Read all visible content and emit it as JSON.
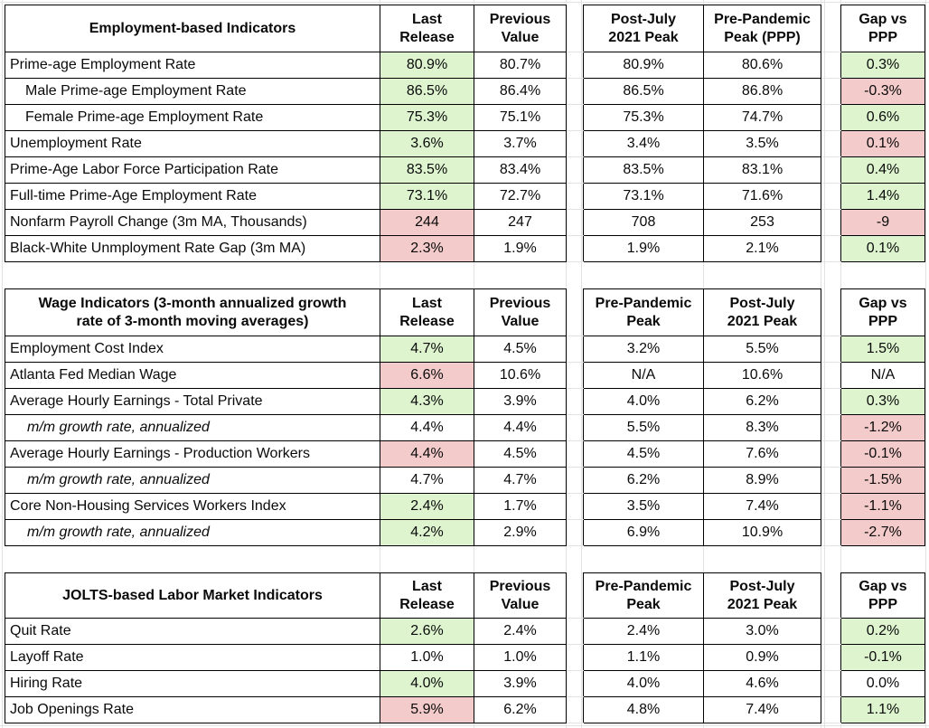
{
  "colors": {
    "positive_fill": "#ddf4cf",
    "negative_fill": "#f4cbcb",
    "cell_border": "#000000",
    "gridline": "#e2e2e2",
    "text": "#0a0a0a"
  },
  "chart_data": [
    {
      "type": "table",
      "title": "Employment-based Indicators",
      "columns": [
        "Last\nRelease",
        "Previous\nValue",
        "Post-July\n2021 Peak",
        "Pre-Pandemic\nPeak (PPP)",
        "Gap vs\nPPP"
      ],
      "rows": [
        {
          "label": "Prime-age Employment Rate",
          "indent": 0,
          "italic": false,
          "values": [
            "80.9%",
            "80.7%",
            "80.9%",
            "80.6%",
            "0.3%"
          ],
          "fills": [
            "green",
            null,
            null,
            null,
            "green"
          ]
        },
        {
          "label": "Male Prime-age Employment Rate",
          "indent": 1,
          "italic": false,
          "values": [
            "86.5%",
            "86.4%",
            "86.5%",
            "86.8%",
            "-0.3%"
          ],
          "fills": [
            "green",
            null,
            null,
            null,
            "red"
          ]
        },
        {
          "label": "Female Prime-age Employment Rate",
          "indent": 1,
          "italic": false,
          "values": [
            "75.3%",
            "75.1%",
            "75.3%",
            "74.7%",
            "0.6%"
          ],
          "fills": [
            "green",
            null,
            null,
            null,
            "green"
          ]
        },
        {
          "label": "Unemployment Rate",
          "indent": 0,
          "italic": false,
          "values": [
            "3.6%",
            "3.7%",
            "3.4%",
            "3.5%",
            "0.1%"
          ],
          "fills": [
            "green",
            null,
            null,
            null,
            "red"
          ]
        },
        {
          "label": "Prime-Age Labor Force Participation Rate",
          "indent": 0,
          "italic": false,
          "values": [
            "83.5%",
            "83.4%",
            "83.5%",
            "83.1%",
            "0.4%"
          ],
          "fills": [
            "green",
            null,
            null,
            null,
            "green"
          ]
        },
        {
          "label": "Full-time Prime-Age Employment Rate",
          "indent": 0,
          "italic": false,
          "values": [
            "73.1%",
            "72.7%",
            "73.1%",
            "71.6%",
            "1.4%"
          ],
          "fills": [
            "green",
            null,
            null,
            null,
            "green"
          ]
        },
        {
          "label": "Nonfarm Payroll Change (3m MA, Thousands)",
          "indent": 0,
          "italic": false,
          "values": [
            "244",
            "247",
            "708",
            "253",
            "-9"
          ],
          "fills": [
            "red",
            null,
            null,
            null,
            "red"
          ]
        },
        {
          "label": "Black-White Unmployment Rate Gap (3m MA)",
          "indent": 0,
          "italic": false,
          "values": [
            "2.3%",
            "1.9%",
            "1.9%",
            "2.1%",
            "0.1%"
          ],
          "fills": [
            "red",
            null,
            null,
            null,
            "green"
          ]
        }
      ]
    },
    {
      "type": "table",
      "title": "Wage Indicators (3-month annualized growth\nrate of 3-month moving averages)",
      "columns": [
        "Last\nRelease",
        "Previous\nValue",
        "Pre-Pandemic\nPeak",
        "Post-July\n2021 Peak",
        "Gap vs\nPPP"
      ],
      "rows": [
        {
          "label": "Employment Cost Index",
          "indent": 0,
          "italic": false,
          "values": [
            "4.7%",
            "4.5%",
            "3.2%",
            "5.5%",
            "1.5%"
          ],
          "fills": [
            "green",
            null,
            null,
            null,
            "green"
          ]
        },
        {
          "label": "Atlanta Fed Median Wage",
          "indent": 0,
          "italic": false,
          "values": [
            "6.6%",
            "10.6%",
            "N/A",
            "10.6%",
            "N/A"
          ],
          "fills": [
            "red",
            null,
            null,
            null,
            null
          ]
        },
        {
          "label": "Average Hourly Earnings - Total Private",
          "indent": 0,
          "italic": false,
          "values": [
            "4.3%",
            "3.9%",
            "4.0%",
            "6.2%",
            "0.3%"
          ],
          "fills": [
            "green",
            null,
            null,
            null,
            "green"
          ]
        },
        {
          "label": "m/m growth rate, annualized",
          "indent": 1,
          "italic": true,
          "values": [
            "4.4%",
            "4.4%",
            "5.5%",
            "8.3%",
            "-1.2%"
          ],
          "fills": [
            null,
            null,
            null,
            null,
            "red"
          ]
        },
        {
          "label": "Average Hourly Earnings - Production Workers",
          "indent": 0,
          "italic": false,
          "values": [
            "4.4%",
            "4.5%",
            "4.5%",
            "7.6%",
            "-0.1%"
          ],
          "fills": [
            "red",
            null,
            null,
            null,
            "red"
          ]
        },
        {
          "label": "m/m growth rate, annualized",
          "indent": 1,
          "italic": true,
          "values": [
            "4.7%",
            "4.7%",
            "6.2%",
            "8.9%",
            "-1.5%"
          ],
          "fills": [
            null,
            null,
            null,
            null,
            "red"
          ]
        },
        {
          "label": "Core Non-Housing Services Workers Index",
          "indent": 0,
          "italic": false,
          "values": [
            "2.4%",
            "1.7%",
            "3.5%",
            "7.4%",
            "-1.1%"
          ],
          "fills": [
            "green",
            null,
            null,
            null,
            "red"
          ]
        },
        {
          "label": "m/m growth rate, annualized",
          "indent": 1,
          "italic": true,
          "values": [
            "4.2%",
            "2.9%",
            "6.9%",
            "10.9%",
            "-2.7%"
          ],
          "fills": [
            "green",
            null,
            null,
            null,
            "red"
          ]
        }
      ]
    },
    {
      "type": "table",
      "title": "JOLTS-based Labor Market Indicators",
      "columns": [
        "Last\nRelease",
        "Previous\nValue",
        "Pre-Pandemic\nPeak",
        "Post-July\n2021 Peak",
        "Gap vs\nPPP"
      ],
      "rows": [
        {
          "label": "Quit Rate",
          "indent": 0,
          "italic": false,
          "values": [
            "2.6%",
            "2.4%",
            "2.4%",
            "3.0%",
            "0.2%"
          ],
          "fills": [
            "green",
            null,
            null,
            null,
            "green"
          ]
        },
        {
          "label": "Layoff Rate",
          "indent": 0,
          "italic": false,
          "values": [
            "1.0%",
            "1.0%",
            "1.1%",
            "0.9%",
            "-0.1%"
          ],
          "fills": [
            null,
            null,
            null,
            null,
            "green"
          ]
        },
        {
          "label": "Hiring Rate",
          "indent": 0,
          "italic": false,
          "values": [
            "4.0%",
            "3.9%",
            "4.0%",
            "4.6%",
            "0.0%"
          ],
          "fills": [
            "green",
            null,
            null,
            null,
            null
          ]
        },
        {
          "label": "Job Openings Rate",
          "indent": 0,
          "italic": false,
          "values": [
            "5.9%",
            "6.2%",
            "4.8%",
            "7.4%",
            "1.1%"
          ],
          "fills": [
            "red",
            null,
            null,
            null,
            "green"
          ]
        }
      ]
    }
  ]
}
